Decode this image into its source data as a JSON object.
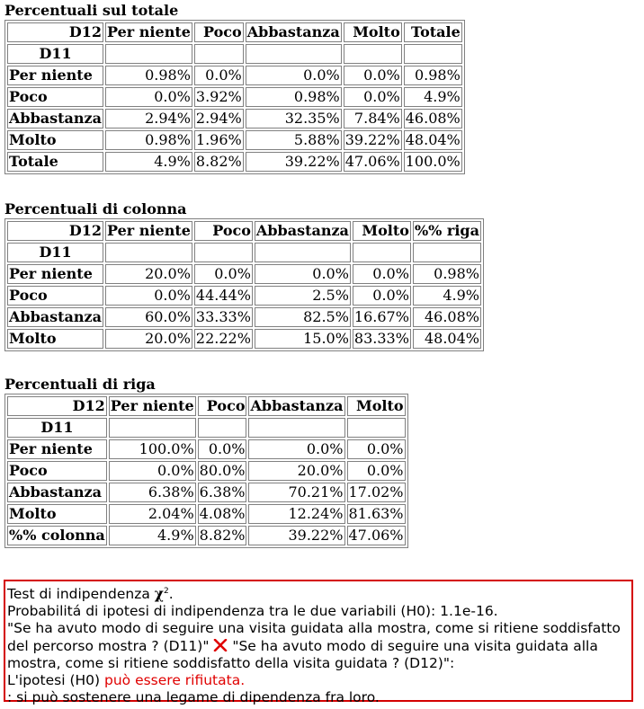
{
  "tables": [
    {
      "caption": "Percentuali sul totale",
      "corner": "D12",
      "row_var": "D11",
      "columns": [
        "Per niente",
        "Poco",
        "Abbastanza",
        "Molto",
        "Totale"
      ],
      "rows": [
        {
          "label": "Per niente",
          "cells": [
            "0.98%",
            "0.0%",
            "0.0%",
            "0.0%",
            "0.98%"
          ]
        },
        {
          "label": "Poco",
          "cells": [
            "0.0%",
            "3.92%",
            "0.98%",
            "0.0%",
            "4.9%"
          ]
        },
        {
          "label": "Abbastanza",
          "cells": [
            "2.94%",
            "2.94%",
            "32.35%",
            "7.84%",
            "46.08%"
          ]
        },
        {
          "label": "Molto",
          "cells": [
            "0.98%",
            "1.96%",
            "5.88%",
            "39.22%",
            "48.04%"
          ]
        },
        {
          "label": "Totale",
          "cells": [
            "4.9%",
            "8.82%",
            "39.22%",
            "47.06%",
            "100.0%"
          ]
        }
      ]
    },
    {
      "caption": "Percentuali di colonna",
      "corner": "D12",
      "row_var": "D11",
      "columns": [
        "Per niente",
        "Poco",
        "Abbastanza",
        "Molto",
        "%% riga"
      ],
      "rows": [
        {
          "label": "Per niente",
          "cells": [
            "20.0%",
            "0.0%",
            "0.0%",
            "0.0%",
            "0.98%"
          ]
        },
        {
          "label": "Poco",
          "cells": [
            "0.0%",
            "44.44%",
            "2.5%",
            "0.0%",
            "4.9%"
          ]
        },
        {
          "label": "Abbastanza",
          "cells": [
            "60.0%",
            "33.33%",
            "82.5%",
            "16.67%",
            "46.08%"
          ]
        },
        {
          "label": "Molto",
          "cells": [
            "20.0%",
            "22.22%",
            "15.0%",
            "83.33%",
            "48.04%"
          ]
        }
      ]
    },
    {
      "caption": "Percentuali di riga",
      "corner": "D12",
      "row_var": "D11",
      "columns": [
        "Per niente",
        "Poco",
        "Abbastanza",
        "Molto"
      ],
      "rows": [
        {
          "label": "Per niente",
          "cells": [
            "100.0%",
            "0.0%",
            "0.0%",
            "0.0%"
          ]
        },
        {
          "label": "Poco",
          "cells": [
            "0.0%",
            "80.0%",
            "20.0%",
            "0.0%"
          ]
        },
        {
          "label": "Abbastanza",
          "cells": [
            "6.38%",
            "6.38%",
            "70.21%",
            "17.02%"
          ]
        },
        {
          "label": "Molto",
          "cells": [
            "2.04%",
            "4.08%",
            "12.24%",
            "81.63%"
          ]
        },
        {
          "label": "%% colonna",
          "cells": [
            "4.9%",
            "8.82%",
            "39.22%",
            "47.06%"
          ]
        }
      ]
    }
  ],
  "test": {
    "title": "Test di indipendenza",
    "chi_symbol": "χ",
    "chi_sup": "2",
    "title_end": ".",
    "prob_line": "Probabilitá di ipotesi di indipendenza tra le due variabili (H0): 1.1e-16.",
    "var1": "\"Se ha avuto modo di seguire una visita guidata alla mostra, come si ritiene soddisfatto del percorso mostra ? (D11)\"",
    "cross_icon": "cross-icon",
    "var2": "\"Se ha avuto modo di seguire una visita guidata alla mostra, come si ritiene soddisfatto della visita guidata ? (D12)\":",
    "hyp_prefix": "L'ipotesi (H0) ",
    "hyp_result": "può essere rifiutata",
    "hyp_end": ".",
    "conclusion": ": si può sostenere una legame di dipendenza fra loro.",
    "accent_color": "#e00000"
  }
}
